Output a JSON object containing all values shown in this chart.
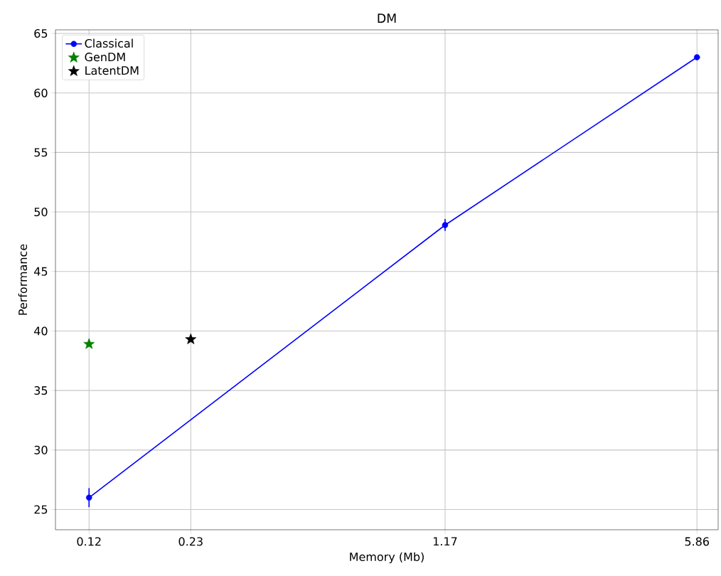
{
  "chart_data": {
    "type": "line",
    "title": "DM",
    "xlabel": "Memory (Mb)",
    "ylabel": "Performance",
    "log": "x",
    "xlim": [
      0.0968,
      6.71
    ],
    "ylim": [
      23.3,
      65.3
    ],
    "xticks": [
      0.12,
      0.23,
      1.17,
      5.86
    ],
    "yticks": [
      25,
      30,
      35,
      40,
      45,
      50,
      55,
      60,
      65
    ],
    "grid": true,
    "legend": "top left",
    "series": [
      {
        "name": "Classical",
        "marker": "circle",
        "color": "#0000ff",
        "x": [
          0.12,
          1.17,
          5.86
        ],
        "values": [
          26,
          48.9,
          63
        ],
        "errors": [
          0.8,
          0.5,
          null
        ]
      },
      {
        "name": "GenDM",
        "type": "scatter",
        "marker": "star",
        "color": "#008000",
        "x": [
          0.12
        ],
        "values": [
          38.9
        ]
      },
      {
        "name": "LatentDM",
        "type": "scatter",
        "marker": "star",
        "color": "#000000",
        "x": [
          0.23
        ],
        "values": [
          39.3
        ]
      }
    ]
  }
}
